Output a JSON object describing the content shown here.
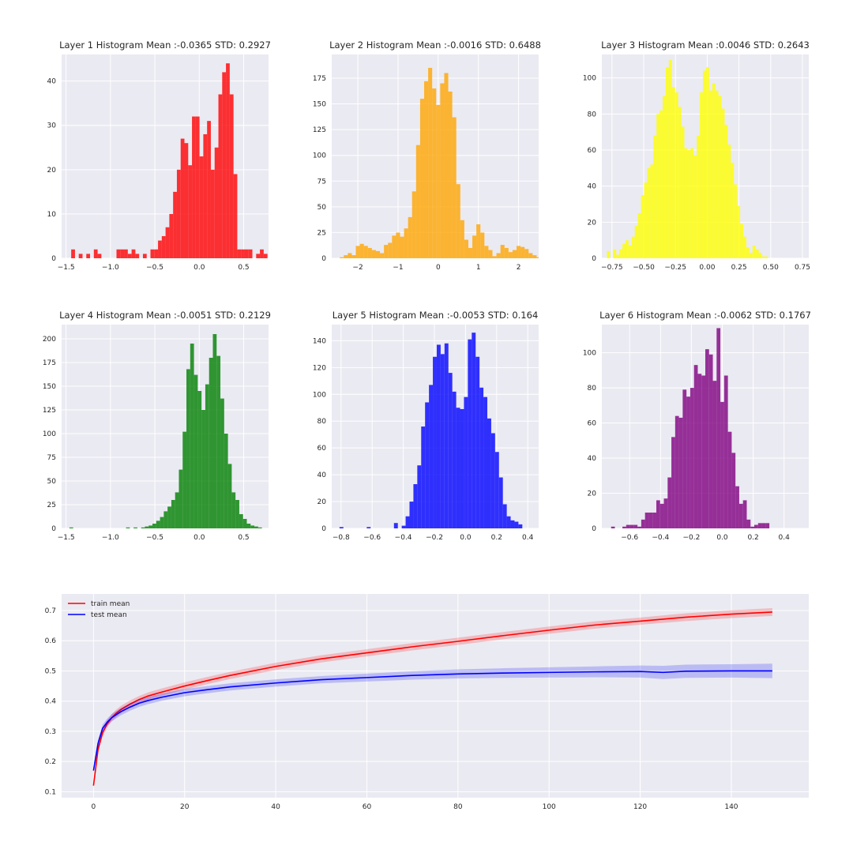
{
  "chart_data": [
    {
      "type": "bar",
      "subtype": "histogram",
      "title": "Layer 1 Histogram Mean :-0.0365 STD: 0.2927",
      "color": "#ff0000",
      "xlim": [
        -1.55,
        0.78
      ],
      "ylim": [
        0,
        46
      ],
      "xticks": [
        -1.5,
        -1.0,
        -0.5,
        0.0,
        0.5
      ],
      "xtick_labels": [
        "−1.5",
        "−1.0",
        "−0.5",
        "0.0",
        "0.5"
      ],
      "yticks": [
        0,
        10,
        20,
        30,
        40
      ],
      "bin_start": -1.442,
      "bin_width": 0.0425,
      "counts": [
        2,
        0,
        1,
        0,
        1,
        0,
        2,
        1,
        0,
        0,
        0,
        0,
        2,
        2,
        2,
        1,
        2,
        1,
        0,
        1,
        0,
        2,
        2,
        4,
        5,
        7,
        10,
        15,
        20,
        27,
        26,
        21,
        32,
        32,
        23,
        28,
        31,
        20,
        25,
        37,
        42,
        44,
        37,
        19,
        2,
        2,
        2,
        2,
        0,
        1,
        2,
        1
      ]
    },
    {
      "type": "bar",
      "subtype": "histogram",
      "title": "Layer 2 Histogram Mean :-0.0016 STD: 0.6488",
      "color": "#ffa500",
      "xlim": [
        -2.65,
        2.5
      ],
      "ylim": [
        0,
        198
      ],
      "xticks": [
        -2,
        -1,
        0,
        1,
        2
      ],
      "xtick_labels": [
        "−2",
        "−1",
        "0",
        "1",
        "2"
      ],
      "yticks": [
        0,
        25,
        50,
        75,
        100,
        125,
        150,
        175
      ],
      "bin_start": -2.45,
      "bin_width": 0.1,
      "counts": [
        1,
        3,
        5,
        3,
        12,
        14,
        12,
        10,
        8,
        7,
        5,
        13,
        15,
        22,
        25,
        21,
        29,
        40,
        65,
        110,
        155,
        172,
        185,
        165,
        149,
        170,
        180,
        162,
        137,
        72,
        37,
        18,
        10,
        22,
        33,
        25,
        12,
        8,
        2,
        5,
        13,
        10,
        6,
        8,
        12,
        11,
        9,
        5,
        3,
        1
      ]
    },
    {
      "type": "bar",
      "subtype": "histogram",
      "title": "Layer 3 Histogram Mean :0.0046 STD: 0.2643",
      "color": "#ffff00",
      "xlim": [
        -0.83,
        0.8
      ],
      "ylim": [
        0,
        113
      ],
      "xticks": [
        -0.75,
        -0.5,
        -0.25,
        0.0,
        0.25,
        0.5,
        0.75
      ],
      "xtick_labels": [
        "−0.75",
        "−0.50",
        "−0.25",
        "0.00",
        "0.25",
        "0.50",
        "0.75"
      ],
      "yticks": [
        0,
        20,
        40,
        60,
        80,
        100
      ],
      "bin_start": -0.79,
      "bin_width": 0.0244,
      "counts": [
        4,
        0,
        5,
        2,
        5,
        8,
        10,
        7,
        12,
        18,
        25,
        35,
        42,
        50,
        52,
        68,
        80,
        82,
        90,
        106,
        110,
        95,
        92,
        84,
        73,
        61,
        60,
        61,
        57,
        68,
        92,
        104,
        106,
        93,
        97,
        93,
        90,
        83,
        74,
        63,
        53,
        41,
        29,
        19,
        12,
        6,
        3,
        7,
        5,
        3,
        1,
        1
      ]
    },
    {
      "type": "bar",
      "subtype": "histogram",
      "title": "Layer 4 Histogram Mean :-0.0051 STD: 0.2129",
      "color": "#008000",
      "xlim": [
        -1.55,
        0.78
      ],
      "ylim": [
        0,
        215
      ],
      "xticks": [
        -1.5,
        -1.0,
        -0.5,
        0.0,
        0.5
      ],
      "xtick_labels": [
        "−1.5",
        "−1.0",
        "−0.5",
        "0.0",
        "0.5"
      ],
      "yticks": [
        0,
        25,
        50,
        75,
        100,
        125,
        150,
        175,
        200
      ],
      "bin_start": -1.462,
      "bin_width": 0.0425,
      "counts": [
        1,
        0,
        0,
        0,
        0,
        0,
        0,
        0,
        0,
        0,
        0,
        0,
        0,
        0,
        0,
        1,
        0,
        1,
        0,
        1,
        2,
        3,
        5,
        8,
        12,
        18,
        23,
        30,
        38,
        62,
        102,
        168,
        195,
        162,
        145,
        125,
        152,
        180,
        205,
        182,
        137,
        100,
        68,
        38,
        30,
        15,
        10,
        5,
        3,
        2,
        1,
        0
      ]
    },
    {
      "type": "bar",
      "subtype": "histogram",
      "title": "Layer 5 Histogram Mean :-0.0053 STD: 0.164",
      "color": "#0000ff",
      "xlim": [
        -0.86,
        0.47
      ],
      "ylim": [
        0,
        152
      ],
      "xticks": [
        -0.8,
        -0.6,
        -0.4,
        -0.2,
        0.0,
        0.2,
        0.4
      ],
      "xtick_labels": [
        "−0.8",
        "−0.6",
        "−0.4",
        "−0.2",
        "0.0",
        "0.2",
        "0.4"
      ],
      "yticks": [
        0,
        20,
        40,
        60,
        80,
        100,
        120,
        140
      ],
      "bin_start": -0.81,
      "bin_width": 0.025,
      "counts": [
        1,
        0,
        0,
        0,
        0,
        0,
        0,
        1,
        0,
        0,
        0,
        0,
        0,
        0,
        4,
        0,
        2,
        9,
        20,
        33,
        47,
        76,
        94,
        107,
        128,
        137,
        130,
        138,
        116,
        102,
        90,
        89,
        98,
        141,
        146,
        128,
        105,
        98,
        82,
        71,
        57,
        38,
        18,
        9,
        6,
        5,
        3
      ]
    },
    {
      "type": "bar",
      "subtype": "histogram",
      "title": "Layer 6 Histogram Mean :-0.0062 STD: 0.1767",
      "color": "#800080",
      "xlim": [
        -0.78,
        0.56
      ],
      "ylim": [
        0,
        116
      ],
      "xticks": [
        -0.6,
        -0.4,
        -0.2,
        0.0,
        0.2,
        0.4
      ],
      "xtick_labels": [
        "−0.6",
        "−0.4",
        "−0.2",
        "0.0",
        "0.2",
        "0.4"
      ],
      "yticks": [
        0,
        20,
        40,
        60,
        80,
        100
      ],
      "bin_start": -0.72,
      "bin_width": 0.0244,
      "counts": [
        1,
        0,
        0,
        1,
        2,
        2,
        2,
        1,
        5,
        9,
        9,
        9,
        16,
        14,
        17,
        29,
        52,
        64,
        63,
        79,
        75,
        80,
        93,
        88,
        87,
        102,
        99,
        84,
        114,
        72,
        87,
        55,
        43,
        24,
        14,
        16,
        5,
        1,
        2,
        3,
        3,
        3
      ]
    },
    {
      "type": "line",
      "title": "",
      "xlim": [
        -7,
        157
      ],
      "ylim": [
        0.08,
        0.755
      ],
      "xticks": [
        0,
        20,
        40,
        60,
        80,
        100,
        120,
        140
      ],
      "yticks": [
        0.1,
        0.2,
        0.3,
        0.4,
        0.5,
        0.6,
        0.7
      ],
      "ytick_labels": [
        "0.1",
        "0.2",
        "0.3",
        "0.4",
        "0.5",
        "0.6",
        "0.7"
      ],
      "legend_position": "top-left",
      "series": [
        {
          "name": "train mean",
          "color": "#ff0000",
          "x": [
            0,
            1,
            2,
            3,
            4,
            5,
            6,
            8,
            10,
            12,
            15,
            20,
            25,
            30,
            40,
            50,
            60,
            70,
            80,
            90,
            100,
            110,
            120,
            130,
            140,
            149
          ],
          "y": [
            0.12,
            0.24,
            0.295,
            0.325,
            0.345,
            0.36,
            0.372,
            0.39,
            0.405,
            0.417,
            0.43,
            0.45,
            0.468,
            0.485,
            0.515,
            0.54,
            0.56,
            0.58,
            0.598,
            0.617,
            0.635,
            0.652,
            0.665,
            0.678,
            0.688,
            0.695
          ],
          "band": [
            0.01,
            0.012,
            0.012,
            0.012,
            0.012,
            0.012,
            0.012,
            0.012,
            0.012,
            0.012,
            0.012,
            0.012,
            0.012,
            0.012,
            0.012,
            0.012,
            0.012,
            0.012,
            0.012,
            0.012,
            0.012,
            0.012,
            0.012,
            0.013,
            0.013,
            0.013
          ]
        },
        {
          "name": "test mean",
          "color": "#0000ff",
          "x": [
            0,
            1,
            2,
            3,
            4,
            5,
            6,
            8,
            10,
            12,
            15,
            20,
            25,
            30,
            40,
            50,
            60,
            70,
            80,
            90,
            100,
            110,
            120,
            125,
            130,
            140,
            149
          ],
          "y": [
            0.17,
            0.26,
            0.31,
            0.33,
            0.345,
            0.355,
            0.365,
            0.38,
            0.393,
            0.402,
            0.413,
            0.428,
            0.438,
            0.447,
            0.46,
            0.471,
            0.478,
            0.485,
            0.49,
            0.493,
            0.495,
            0.497,
            0.498,
            0.495,
            0.499,
            0.5,
            0.5
          ],
          "band": [
            0.01,
            0.012,
            0.012,
            0.012,
            0.012,
            0.012,
            0.012,
            0.012,
            0.012,
            0.012,
            0.012,
            0.012,
            0.012,
            0.012,
            0.012,
            0.012,
            0.013,
            0.014,
            0.015,
            0.016,
            0.017,
            0.018,
            0.02,
            0.022,
            0.022,
            0.022,
            0.024
          ]
        }
      ]
    }
  ]
}
